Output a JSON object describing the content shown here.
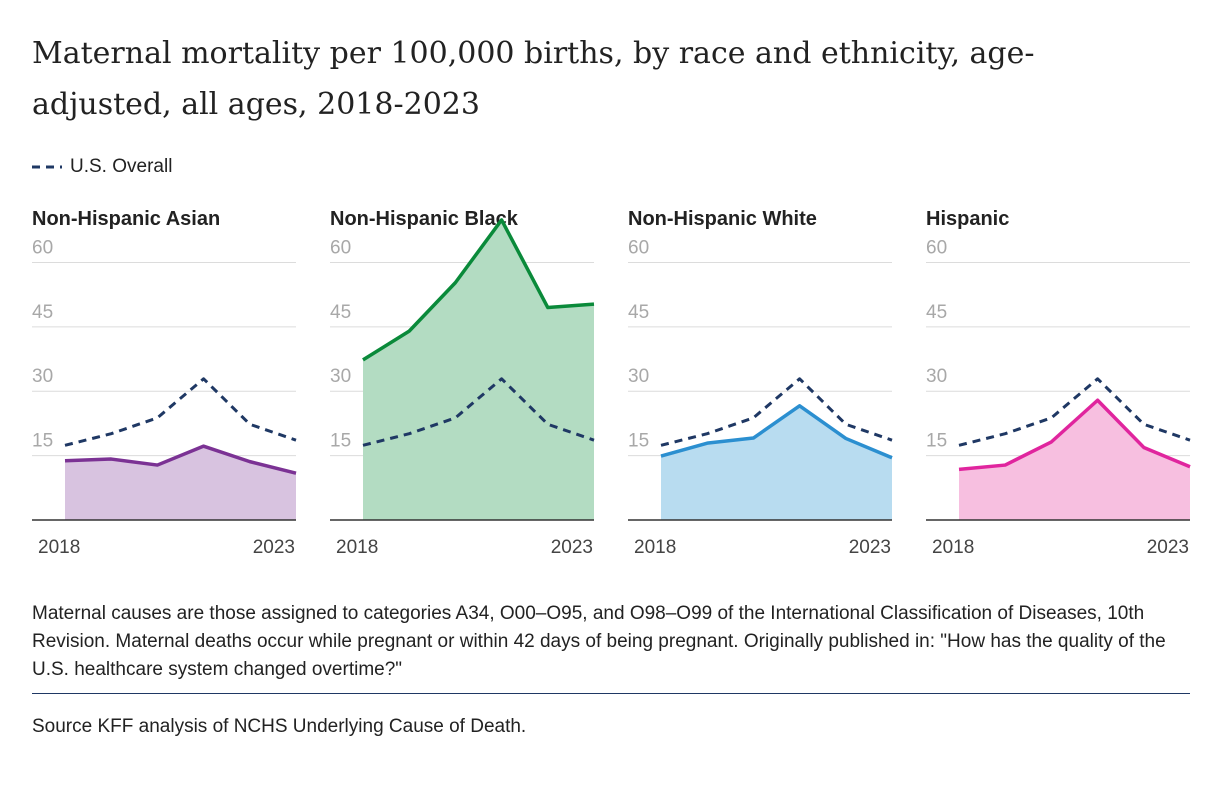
{
  "title": "Maternal mortality per 100,000 births, by race and ethnicity, age-adjusted, all ages, 2018-2023",
  "legend": {
    "overall_label": "U.S. Overall",
    "overall_color": "#1f3864"
  },
  "notes": "Maternal causes are those assigned to categories A34, O00–O95, and O98–O99 of the International Classification of Diseases, 10th Revision. Maternal deaths occur while pregnant or within 42 days of being pregnant. Originally published in: \"How has the quality of the U.S. healthcare system changed overtime?\"",
  "source": "Source KFF analysis of NCHS Underlying Cause of Death.",
  "chart_data": [
    {
      "type": "area",
      "title": "Non-Hispanic Asian",
      "x": [
        2018,
        2019,
        2020,
        2021,
        2022,
        2023
      ],
      "x_tick_labels": [
        "2018",
        "2023"
      ],
      "y_ticks": [
        15,
        30,
        45,
        60
      ],
      "ylim": [
        0,
        65
      ],
      "color": "#7b3294",
      "fill": "#d8c3e0",
      "series": [
        {
          "name": "Non-Hispanic Asian",
          "values": [
            13.8,
            14.2,
            12.8,
            17.2,
            13.6,
            10.9
          ]
        },
        {
          "name": "U.S. Overall",
          "values": [
            17.4,
            20.1,
            23.8,
            32.9,
            22.3,
            18.6
          ]
        }
      ]
    },
    {
      "type": "area",
      "title": "Non-Hispanic Black",
      "x": [
        2018,
        2019,
        2020,
        2021,
        2022,
        2023
      ],
      "x_tick_labels": [
        "2018",
        "2023"
      ],
      "y_ticks": [
        15,
        30,
        45,
        60
      ],
      "ylim": [
        0,
        65
      ],
      "color": "#0a8a3a",
      "fill": "#b3dcc2",
      "series": [
        {
          "name": "Non-Hispanic Black",
          "values": [
            37.3,
            44.0,
            55.3,
            69.9,
            49.5,
            50.3
          ]
        },
        {
          "name": "U.S. Overall",
          "values": [
            17.4,
            20.1,
            23.8,
            32.9,
            22.3,
            18.6
          ]
        }
      ]
    },
    {
      "type": "area",
      "title": "Non-Hispanic White",
      "x": [
        2018,
        2019,
        2020,
        2021,
        2022,
        2023
      ],
      "x_tick_labels": [
        "2018",
        "2023"
      ],
      "y_ticks": [
        15,
        30,
        45,
        60
      ],
      "ylim": [
        0,
        65
      ],
      "color": "#2b8fd0",
      "fill": "#b8dcf0",
      "series": [
        {
          "name": "Non-Hispanic White",
          "values": [
            14.9,
            17.9,
            19.1,
            26.6,
            19.0,
            14.5
          ]
        },
        {
          "name": "U.S. Overall",
          "values": [
            17.4,
            20.1,
            23.8,
            32.9,
            22.3,
            18.6
          ]
        }
      ]
    },
    {
      "type": "area",
      "title": "Hispanic",
      "x": [
        2018,
        2019,
        2020,
        2021,
        2022,
        2023
      ],
      "x_tick_labels": [
        "2018",
        "2023"
      ],
      "y_ticks": [
        15,
        30,
        45,
        60
      ],
      "ylim": [
        0,
        65
      ],
      "color": "#e0259e",
      "fill": "#f7bfe0",
      "series": [
        {
          "name": "Hispanic",
          "values": [
            11.8,
            12.8,
            18.2,
            27.9,
            16.9,
            12.4
          ]
        },
        {
          "name": "U.S. Overall",
          "values": [
            17.4,
            20.1,
            23.8,
            32.9,
            22.3,
            18.6
          ]
        }
      ]
    }
  ]
}
